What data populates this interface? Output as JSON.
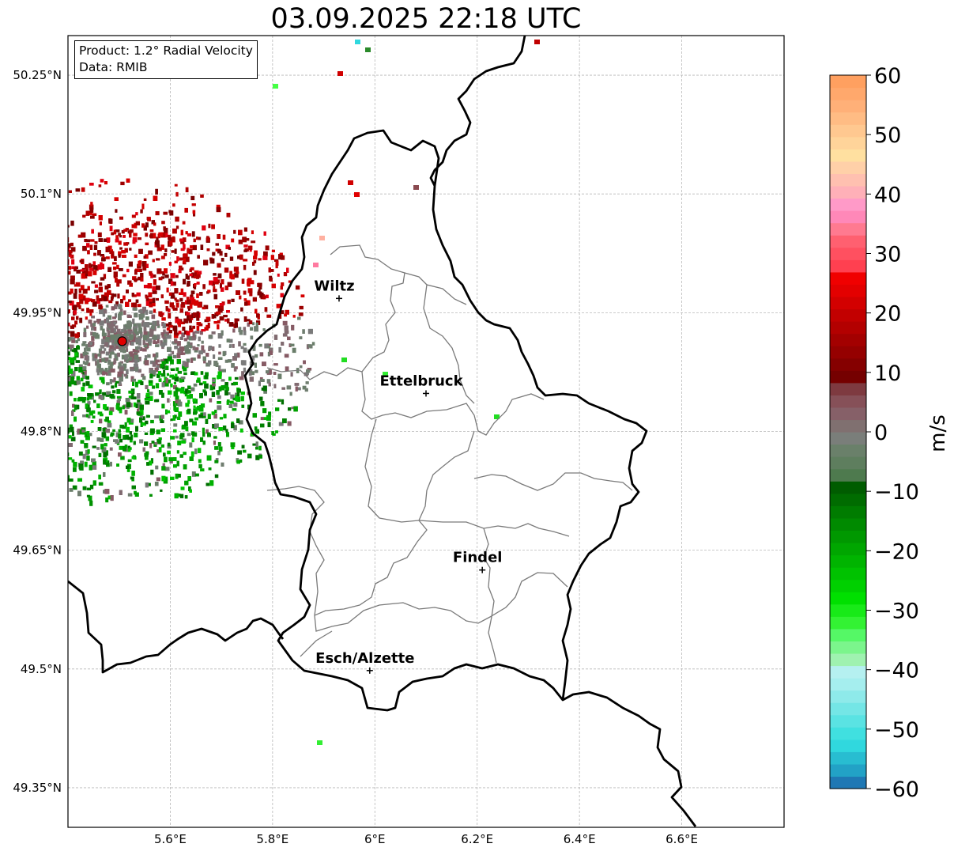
{
  "title": "03.09.2025 22:18 UTC",
  "info": {
    "product": "Product: 1.2° Radial Velocity",
    "source": "Data: RMIB"
  },
  "map": {
    "lon_range": [
      5.4,
      6.8
    ],
    "lat_range": [
      49.3,
      50.3
    ],
    "lon_ticks": [
      {
        "value": 5.6,
        "label": "5.6°E"
      },
      {
        "value": 5.8,
        "label": "5.8°E"
      },
      {
        "value": 6.0,
        "label": "6°E"
      },
      {
        "value": 6.2,
        "label": "6.2°E"
      },
      {
        "value": 6.4,
        "label": "6.4°E"
      },
      {
        "value": 6.6,
        "label": "6.6°E"
      }
    ],
    "lat_ticks": [
      {
        "value": 49.35,
        "label": "49.35°N"
      },
      {
        "value": 49.5,
        "label": "49.5°N"
      },
      {
        "value": 49.65,
        "label": "49.65°N"
      },
      {
        "value": 49.8,
        "label": "49.8°N"
      },
      {
        "value": 49.95,
        "label": "49.95°N"
      },
      {
        "value": 50.1,
        "label": "50.1°N"
      },
      {
        "value": 50.25,
        "label": "50.25°N"
      }
    ],
    "cities": [
      {
        "name": "Wiltz",
        "lon": 5.93,
        "lat": 49.968
      },
      {
        "name": "Ettelbruck",
        "lon": 6.1,
        "lat": 49.848
      },
      {
        "name": "Findel",
        "lon": 6.21,
        "lat": 49.625
      },
      {
        "name": "Esch/Alzette",
        "lon": 5.99,
        "lat": 49.498
      }
    ],
    "radar_site": {
      "lon": 5.506,
      "lat": 49.914
    }
  },
  "colorbar": {
    "unit": "m/s",
    "min": -60,
    "max": 60,
    "tick_labels": [
      "−60",
      "−50",
      "−40",
      "−30",
      "−20",
      "−10",
      "0",
      "10",
      "20",
      "30",
      "40",
      "50",
      "60"
    ],
    "tick_values": [
      -60,
      -50,
      -40,
      -30,
      -20,
      -10,
      0,
      10,
      20,
      30,
      40,
      50,
      60
    ],
    "colors": [
      "#1f78b4",
      "#22a2c6",
      "#28bdd1",
      "#30d8de",
      "#40e0e0",
      "#5ae3e3",
      "#74e6e6",
      "#8eeaea",
      "#a5eeee",
      "#b5f0f0",
      "#9ff2b0",
      "#7bf58c",
      "#55f866",
      "#33f233",
      "#18ea18",
      "#00e000",
      "#00d000",
      "#00c200",
      "#00b400",
      "#00a600",
      "#009800",
      "#008a00",
      "#007c00",
      "#006c00",
      "#005c00",
      "#4e7a4e",
      "#5e7e5e",
      "#6a806a",
      "#7a7e7a",
      "#807070",
      "#866068",
      "#865058",
      "#7e3a40",
      "#750000",
      "#850000",
      "#950000",
      "#a30000",
      "#b30000",
      "#c20000",
      "#d30000",
      "#e30000",
      "#f00000",
      "#ff4050",
      "#ff5060",
      "#ff6070",
      "#ff7a90",
      "#ff88b8",
      "#ff9ac8",
      "#ffb0b8",
      "#ffc0b0",
      "#ffd0a8",
      "#ffe0a0",
      "#ffd49a",
      "#ffc890",
      "#ffbc84",
      "#ffb078",
      "#ffa86c",
      "#ffa060"
    ]
  }
}
